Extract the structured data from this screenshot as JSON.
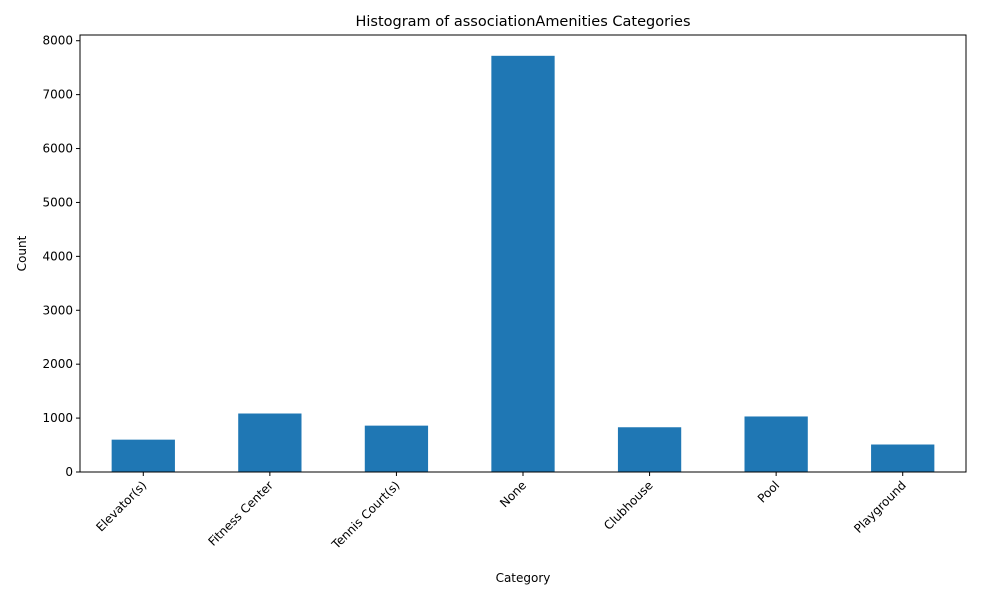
{
  "chart_data": {
    "type": "bar",
    "title": "Histogram of associationAmenities Categories",
    "xlabel": "Category",
    "ylabel": "Count",
    "categories": [
      "Elevator(s)",
      "Fitness Center",
      "Tennis Court(s)",
      "None",
      "Clubhouse",
      "Pool",
      "Playground"
    ],
    "values": [
      600,
      1085,
      860,
      7720,
      830,
      1030,
      510
    ],
    "ylim": [
      0,
      8106
    ],
    "yticks": [
      0,
      1000,
      2000,
      3000,
      4000,
      5000,
      6000,
      7000,
      8000
    ],
    "ytick_labels": [
      "0",
      "1000",
      "2000",
      "3000",
      "4000",
      "5000",
      "6000",
      "7000",
      "8000"
    ],
    "grid": false,
    "bar_color": "#1f77b4"
  }
}
